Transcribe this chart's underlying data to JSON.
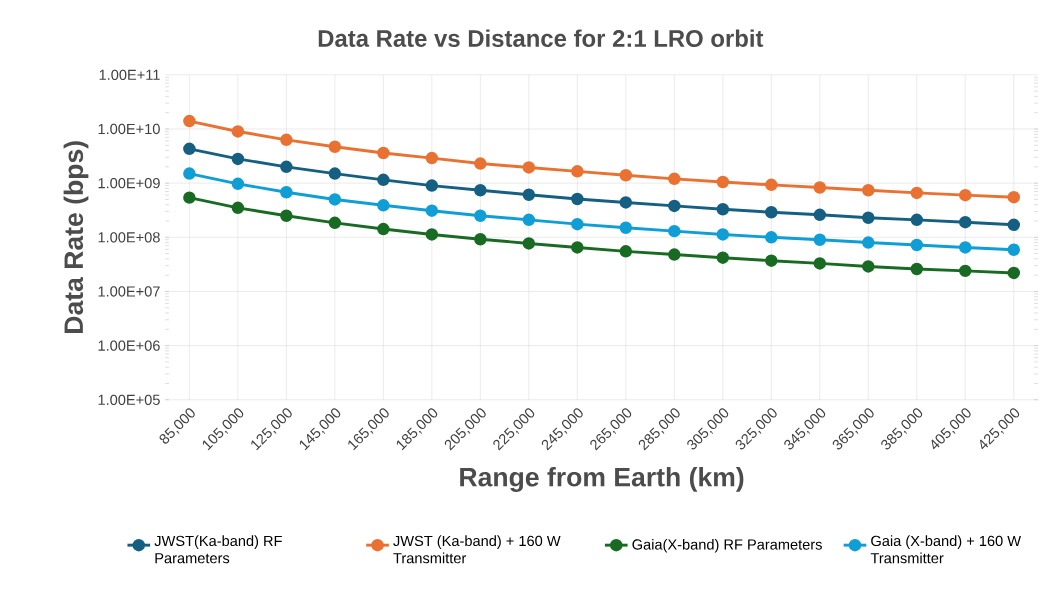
{
  "chart_data": {
    "type": "line",
    "title": "Data Rate vs Distance for 2:1 LRO orbit",
    "xlabel": "Range from Earth (km)",
    "ylabel": "Data Rate (bps)",
    "categories": [
      "85,000",
      "105,000",
      "125,000",
      "145,000",
      "165,000",
      "185,000",
      "205,000",
      "225,000",
      "245,000",
      "265,000",
      "285,000",
      "305,000",
      "325,000",
      "345,000",
      "365,000",
      "385,000",
      "405,000",
      "425,000"
    ],
    "series": [
      {
        "name": "JWST(Ka-band) RF Parameters",
        "color": "#156082",
        "values": [
          4300000000.0,
          2800000000.0,
          2000000000.0,
          1500000000.0,
          1150000000.0,
          900000000.0,
          740000000.0,
          610000000.0,
          510000000.0,
          440000000.0,
          380000000.0,
          330000000.0,
          290000000.0,
          260000000.0,
          230000000.0,
          210000000.0,
          190000000.0,
          170000000.0
        ]
      },
      {
        "name": "JWST (Ka-band) + 160 W Transmitter",
        "color": "#E97132",
        "values": [
          14000000000.0,
          9000000000.0,
          6300000000.0,
          4700000000.0,
          3600000000.0,
          2900000000.0,
          2300000000.0,
          1950000000.0,
          1650000000.0,
          1400000000.0,
          1200000000.0,
          1050000000.0,
          930000000.0,
          830000000.0,
          740000000.0,
          660000000.0,
          600000000.0,
          550000000.0
        ]
      },
      {
        "name": "Gaia(X-band) RF Parameters",
        "color": "#196B24",
        "values": [
          540000000.0,
          350000000.0,
          250000000.0,
          185000000.0,
          142000000.0,
          113000000.0,
          92000000.0,
          77000000.0,
          65000000.0,
          55000000.0,
          48000000.0,
          42000000.0,
          37000000.0,
          33000000.0,
          29000000.0,
          26000000.0,
          24000000.0,
          22000000.0
        ]
      },
      {
        "name": "Gaia (X-band) + 160 W Transmitter",
        "color": "#0F9ED5",
        "values": [
          1500000000.0,
          970000000.0,
          680000000.0,
          500000000.0,
          390000000.0,
          310000000.0,
          250000000.0,
          210000000.0,
          175000000.0,
          150000000.0,
          130000000.0,
          113000000.0,
          100000000.0,
          90000000.0,
          80000000.0,
          72000000.0,
          65000000.0,
          59000000.0
        ]
      }
    ],
    "log": "y",
    "ylim": [
      100000,
      100000000000
    ],
    "yticks": [
      {
        "value": 100000,
        "label": "1.00E+05"
      },
      {
        "value": 1000000,
        "label": "1.00E+06"
      },
      {
        "value": 10000000,
        "label": "1.00E+07"
      },
      {
        "value": 100000000,
        "label": "1.00E+08"
      },
      {
        "value": 1000000000,
        "label": "1.00E+09"
      },
      {
        "value": 10000000000,
        "label": "1.00E+10"
      },
      {
        "value": 100000000000,
        "label": "1.00E+11"
      }
    ],
    "grid": true,
    "legend": "bottom",
    "marker": "circle",
    "line_style": "solid"
  }
}
